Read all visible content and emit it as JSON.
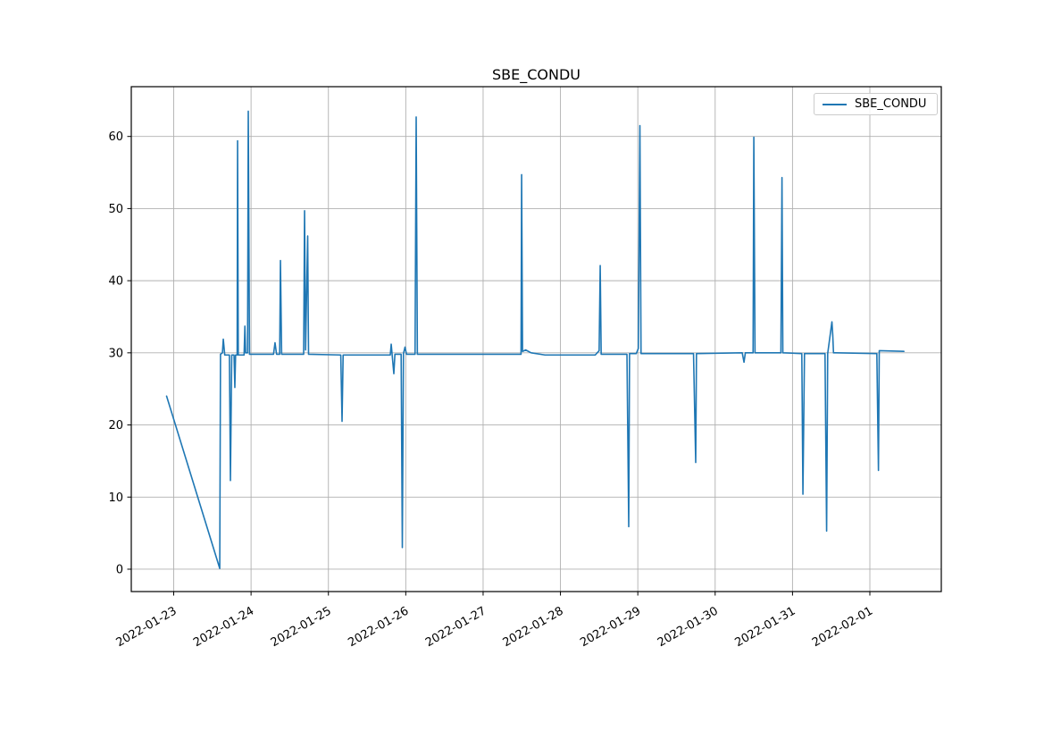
{
  "title": "SBE_CONDU",
  "legend": {
    "label": "SBE_CONDU",
    "line_color": "#1f77b4"
  },
  "colors": {
    "line": "#1f77b4",
    "grid": "#b0b0b0",
    "axis": "#000000",
    "background": "#ffffff"
  },
  "axes": {
    "x_ticks": [
      "2022-01-23",
      "2022-01-24",
      "2022-01-25",
      "2022-01-26",
      "2022-01-27",
      "2022-01-28",
      "2022-01-29",
      "2022-01-30",
      "2022-01-31",
      "2022-02-01"
    ],
    "y_ticks": [
      0,
      10,
      20,
      30,
      40,
      50,
      60
    ],
    "x_domain": [
      "2022-01-22 10:50",
      "2022-02-01 22:10"
    ],
    "y_domain": [
      -3.1,
      66.9
    ],
    "grid": true
  },
  "chart_data": {
    "type": "line",
    "title": "SBE_CONDU",
    "xlabel": "",
    "ylabel": "",
    "legend_position": "upper right",
    "grid": true,
    "ylim": [
      -3.1,
      66.9
    ],
    "x_tick_labels": [
      "2022-01-23",
      "2022-01-24",
      "2022-01-25",
      "2022-01-26",
      "2022-01-27",
      "2022-01-28",
      "2022-01-29",
      "2022-01-30",
      "2022-01-31",
      "2022-02-01"
    ],
    "series": [
      {
        "name": "SBE_CONDU",
        "color": "#1f77b4",
        "points": [
          [
            "2022-01-22 21:47",
            24.0
          ],
          [
            "2022-01-23 14:17",
            0.1
          ],
          [
            "2022-01-23 14:31",
            29.8
          ],
          [
            "2022-01-23 15:07",
            30.0
          ],
          [
            "2022-01-23 15:23",
            31.9
          ],
          [
            "2022-01-23 15:50",
            29.7
          ],
          [
            "2022-01-23 17:17",
            29.7
          ],
          [
            "2022-01-23 17:36",
            12.3
          ],
          [
            "2022-01-23 18:00",
            29.7
          ],
          [
            "2022-01-23 18:43",
            29.7
          ],
          [
            "2022-01-23 18:58",
            25.2
          ],
          [
            "2022-01-23 19:12",
            29.7
          ],
          [
            "2022-01-23 19:41",
            29.7
          ],
          [
            "2022-01-23 19:49",
            59.4
          ],
          [
            "2022-01-23 20:02",
            29.7
          ],
          [
            "2022-01-23 21:50",
            29.7
          ],
          [
            "2022-01-23 22:05",
            33.7
          ],
          [
            "2022-01-23 22:19",
            30.0
          ],
          [
            "2022-01-23 22:55",
            30.0
          ],
          [
            "2022-01-23 23:08",
            63.5
          ],
          [
            "2022-01-23 23:31",
            29.8
          ],
          [
            "2022-01-24 06:58",
            29.8
          ],
          [
            "2022-01-24 07:26",
            31.4
          ],
          [
            "2022-01-24 07:55",
            29.8
          ],
          [
            "2022-01-24 08:53",
            29.8
          ],
          [
            "2022-01-24 09:07",
            42.8
          ],
          [
            "2022-01-24 09:29",
            29.8
          ],
          [
            "2022-01-24 16:19",
            29.8
          ],
          [
            "2022-01-24 16:36",
            49.7
          ],
          [
            "2022-01-24 16:55",
            30.4
          ],
          [
            "2022-01-24 17:34",
            46.2
          ],
          [
            "2022-01-24 17:50",
            29.8
          ],
          [
            "2022-01-25 03:50",
            29.7
          ],
          [
            "2022-01-25 04:14",
            20.5
          ],
          [
            "2022-01-25 04:34",
            29.7
          ],
          [
            "2022-01-25 19:12",
            29.7
          ],
          [
            "2022-01-25 19:29",
            31.2
          ],
          [
            "2022-01-25 20:18",
            27.1
          ],
          [
            "2022-01-25 20:38",
            29.8
          ],
          [
            "2022-01-25 22:34",
            29.8
          ],
          [
            "2022-01-25 22:56",
            3.0
          ],
          [
            "2022-01-25 23:17",
            29.9
          ],
          [
            "2022-01-25 23:46",
            30.8
          ],
          [
            "2022-01-26 00:14",
            29.8
          ],
          [
            "2022-01-26 02:53",
            29.8
          ],
          [
            "2022-01-26 03:14",
            62.7
          ],
          [
            "2022-01-26 03:36",
            29.8
          ],
          [
            "2022-01-27 11:46",
            29.8
          ],
          [
            "2022-01-27 11:57",
            54.7
          ],
          [
            "2022-01-27 12:14",
            30.2
          ],
          [
            "2022-01-27 13:12",
            30.4
          ],
          [
            "2022-01-27 14:53",
            30.0
          ],
          [
            "2022-01-27 19:12",
            29.7
          ],
          [
            "2022-01-28 10:48",
            29.7
          ],
          [
            "2022-01-28 12:00",
            30.3
          ],
          [
            "2022-01-28 12:20",
            42.1
          ],
          [
            "2022-01-28 12:38",
            29.8
          ],
          [
            "2022-01-28 20:38",
            29.8
          ],
          [
            "2022-01-28 21:11",
            5.9
          ],
          [
            "2022-01-28 21:26",
            29.9
          ],
          [
            "2022-01-28 23:31",
            29.9
          ],
          [
            "2022-01-29 00:10",
            30.6
          ],
          [
            "2022-01-29 00:39",
            61.5
          ],
          [
            "2022-01-29 01:00",
            29.9
          ],
          [
            "2022-01-29 17:17",
            29.9
          ],
          [
            "2022-01-29 17:58",
            14.8
          ],
          [
            "2022-01-29 18:12",
            29.9
          ],
          [
            "2022-01-30 08:24",
            30.0
          ],
          [
            "2022-01-30 08:57",
            28.7
          ],
          [
            "2022-01-30 09:22",
            30.0
          ],
          [
            "2022-01-30 11:46",
            30.0
          ],
          [
            "2022-01-30 12:00",
            59.9
          ],
          [
            "2022-01-30 12:22",
            30.0
          ],
          [
            "2022-01-30 20:24",
            30.0
          ],
          [
            "2022-01-30 20:44",
            54.3
          ],
          [
            "2022-01-30 21:00",
            30.0
          ],
          [
            "2022-01-31 02:53",
            29.9
          ],
          [
            "2022-01-31 03:14",
            10.4
          ],
          [
            "2022-01-31 03:43",
            29.9
          ],
          [
            "2022-01-31 10:05",
            29.9
          ],
          [
            "2022-01-31 10:35",
            5.3
          ],
          [
            "2022-01-31 10:55",
            29.9
          ],
          [
            "2022-01-31 12:14",
            34.3
          ],
          [
            "2022-01-31 12:29",
            32.5
          ],
          [
            "2022-01-31 12:43",
            30.0
          ],
          [
            "2022-01-31 13:26",
            30.0
          ],
          [
            "2022-02-01 02:10",
            29.9
          ],
          [
            "2022-02-01 02:40",
            13.7
          ],
          [
            "2022-02-01 02:55",
            30.3
          ],
          [
            "2022-02-01 10:34",
            30.2
          ]
        ]
      }
    ]
  }
}
